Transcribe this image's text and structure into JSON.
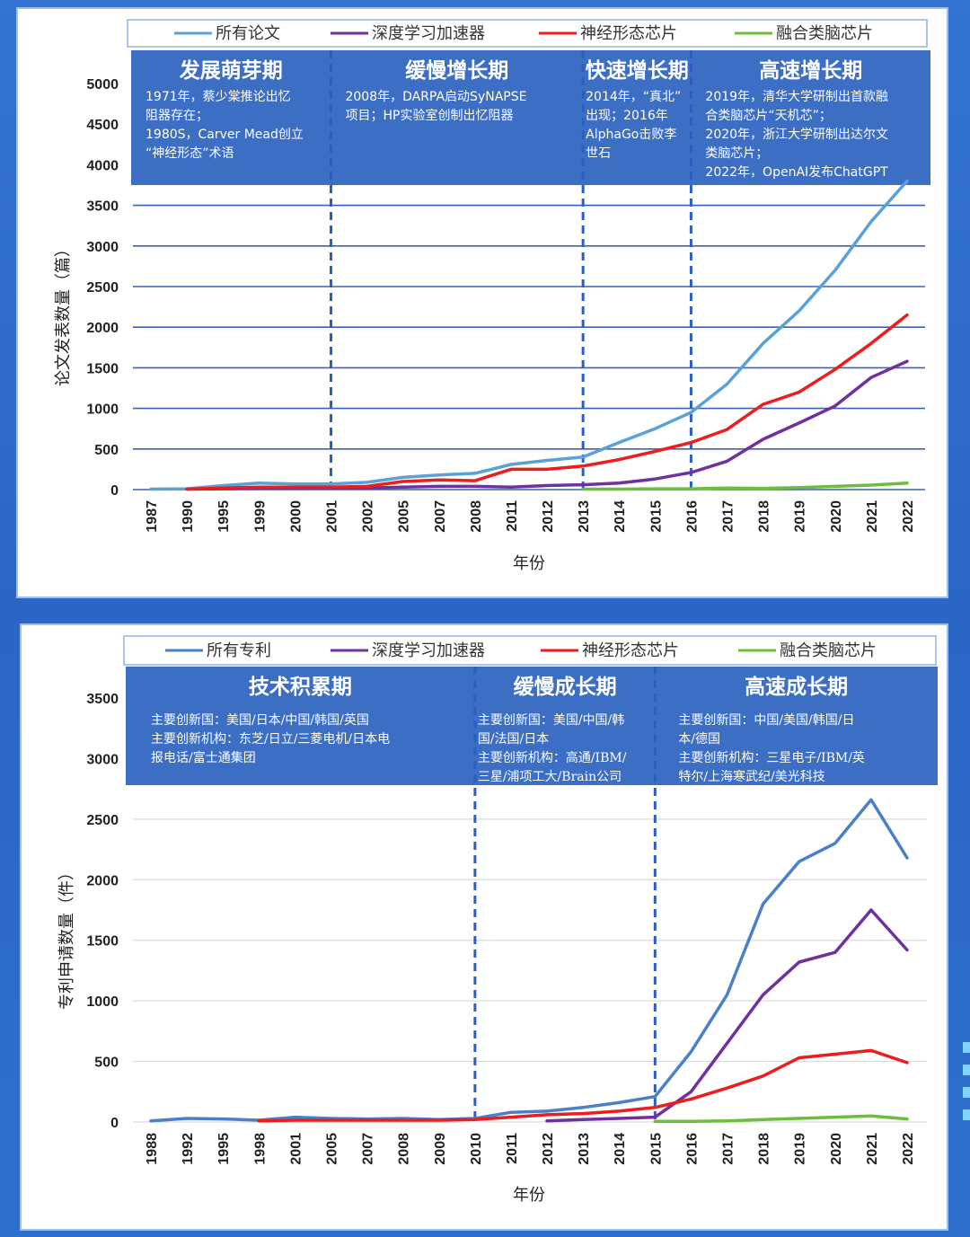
{
  "chart_data": [
    {
      "type": "line",
      "legend": [
        "所有论文",
        "深度学习加速器",
        "神经形态芯片",
        "融合类脑芯片"
      ],
      "colors": [
        "#5aa1d8",
        "#7030a0",
        "#ee1c1c",
        "#6cbf3c"
      ],
      "ylabel": "论文发表数量（篇）",
      "xlabel": "年份",
      "ylim": [
        0,
        5000
      ],
      "yticks": [
        0,
        500,
        1000,
        1500,
        2000,
        2500,
        3000,
        3500,
        4000,
        4500,
        5000
      ],
      "categories": [
        "1987",
        "1990",
        "1995",
        "1999",
        "2000",
        "2001",
        "2002",
        "2005",
        "2007",
        "2008",
        "2011",
        "2012",
        "2013",
        "2014",
        "2015",
        "2016",
        "2017",
        "2018",
        "2019",
        "2020",
        "2021",
        "2022"
      ],
      "series": [
        {
          "name": "所有论文",
          "values": [
            5,
            10,
            50,
            80,
            70,
            70,
            90,
            150,
            180,
            200,
            310,
            360,
            400,
            580,
            750,
            950,
            1300,
            1800,
            2200,
            2700,
            3300,
            3800
          ]
        },
        {
          "name": "深度学习加速器",
          "values": [
            null,
            5,
            10,
            15,
            15,
            20,
            20,
            30,
            40,
            40,
            30,
            50,
            60,
            80,
            130,
            210,
            350,
            620,
            820,
            1030,
            1380,
            1580
          ]
        },
        {
          "name": "神经形态芯片",
          "values": [
            null,
            5,
            20,
            30,
            30,
            30,
            40,
            100,
            120,
            110,
            250,
            250,
            290,
            370,
            470,
            580,
            740,
            1050,
            1200,
            1480,
            1800,
            2150
          ]
        },
        {
          "name": "融合类脑芯片",
          "values": [
            null,
            null,
            null,
            null,
            null,
            null,
            null,
            null,
            null,
            null,
            null,
            null,
            5,
            5,
            10,
            10,
            20,
            15,
            25,
            40,
            55,
            80
          ]
        }
      ],
      "phase_boundaries": [
        "2001",
        "2013",
        "2016"
      ],
      "phases": [
        {
          "title": "发展萌芽期",
          "lines": [
            "1971年，蔡少棠推论出忆",
            "阻器存在；",
            "1980S，Carver Mead创立",
            "“神经形态”术语"
          ]
        },
        {
          "title": "缓慢增长期",
          "lines": [
            "2008年，DARPA启动SyNAPSE",
            "项目；HP实验室创制出忆阻器"
          ]
        },
        {
          "title": "快速增长期",
          "lines": [
            "2014年，“真北”",
            "出现；2016年",
            "AlphaGo击败李",
            "世石"
          ]
        },
        {
          "title": "高速增长期",
          "lines": [
            "2019年，清华大学研制出首款融",
            "合类脑芯片“天机芯”；",
            "2020年，浙江大学研制出达尔文",
            "类脑芯片；",
            "2022年，OpenAI发布ChatGPT"
          ]
        }
      ]
    },
    {
      "type": "line",
      "legend": [
        "所有专利",
        "深度学习加速器",
        "神经形态芯片",
        "融合类脑芯片"
      ],
      "colors": [
        "#4a7fc9",
        "#7030a0",
        "#ee1c1c",
        "#6cbf3c"
      ],
      "ylabel": "专利申请数量（件）",
      "xlabel": "年份",
      "ylim": [
        0,
        3500
      ],
      "yticks": [
        0,
        500,
        1000,
        1500,
        2000,
        2500,
        3000,
        3500
      ],
      "categories": [
        "1988",
        "1992",
        "1995",
        "1998",
        "2001",
        "2005",
        "2007",
        "2008",
        "2009",
        "2010",
        "2011",
        "2012",
        "2013",
        "2014",
        "2015",
        "2016",
        "2017",
        "2018",
        "2019",
        "2020",
        "2021",
        "2022"
      ],
      "series": [
        {
          "name": "所有专利",
          "values": [
            10,
            30,
            25,
            15,
            40,
            30,
            25,
            30,
            20,
            30,
            80,
            90,
            120,
            160,
            210,
            580,
            1050,
            1800,
            2150,
            2300,
            2660,
            2180
          ]
        },
        {
          "name": "深度学习加速器",
          "values": [
            null,
            null,
            null,
            null,
            null,
            null,
            null,
            null,
            null,
            null,
            null,
            10,
            20,
            30,
            40,
            250,
            650,
            1050,
            1320,
            1400,
            1750,
            1420
          ]
        },
        {
          "name": "神经形态芯片",
          "values": [
            null,
            null,
            null,
            10,
            15,
            15,
            15,
            15,
            15,
            20,
            40,
            60,
            70,
            90,
            120,
            190,
            280,
            380,
            530,
            560,
            590,
            490
          ]
        },
        {
          "name": "融合类脑芯片",
          "values": [
            null,
            null,
            null,
            null,
            null,
            null,
            null,
            null,
            null,
            null,
            null,
            null,
            null,
            null,
            5,
            5,
            10,
            20,
            30,
            40,
            50,
            25
          ]
        }
      ],
      "phase_boundaries": [
        "2010",
        "2015"
      ],
      "phases": [
        {
          "title": "技术积累期",
          "lines": [
            "主要创新国：美国/日本/中国/韩国/英国",
            "主要创新机构：东芝/日立/三菱电机/日本电",
            "报电话/富士通集团"
          ]
        },
        {
          "title": "缓慢成长期",
          "lines": [
            "主要创新国：美国/中国/韩",
            "国/法国/日本",
            "主要创新机构：高通/IBM/",
            "三星/浦项工大/Brain公司"
          ]
        },
        {
          "title": "高速成长期",
          "lines": [
            "主要创新国：中国/美国/韩国/日",
            "本/德国",
            "主要创新机构：三星电子/IBM/英",
            "特尔/上海寒武纪/美光科技"
          ]
        }
      ]
    }
  ]
}
